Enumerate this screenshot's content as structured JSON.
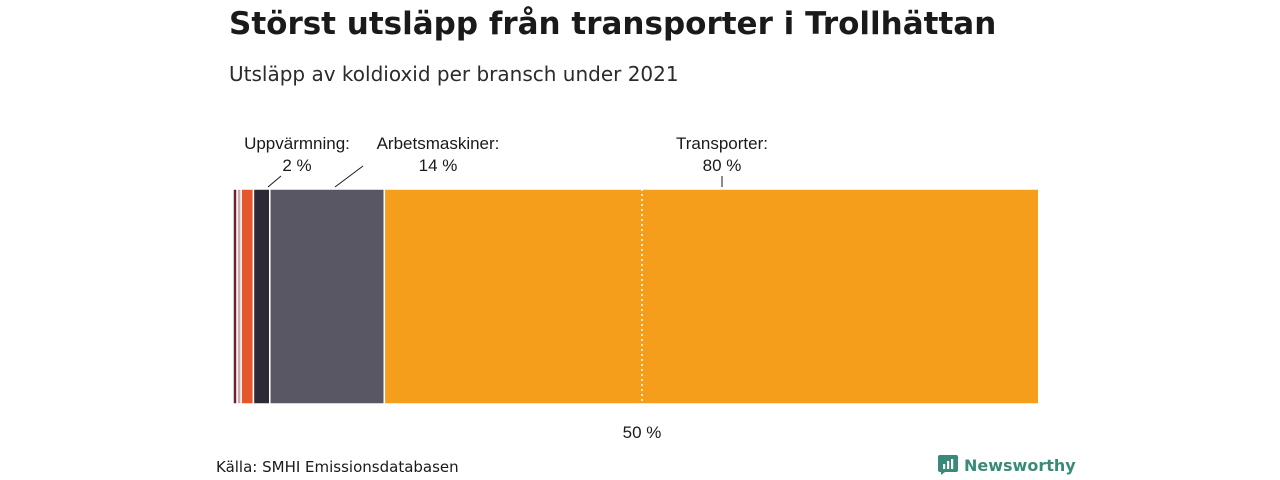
{
  "header": {
    "title": "Störst utsläpp från transporter i Trollhättan",
    "subtitle": "Utsläpp av koldioxid per bransch under 2021"
  },
  "footer": {
    "source": "Källa: SMHI Emissionsdatabasen",
    "brand": "Newsworthy",
    "brand_icon": "newsworthy-logo-icon"
  },
  "colors": {
    "accent_transport": "#F59E1B",
    "work_machines": "#5A5764",
    "heating": "#2D2A35",
    "small_1": "#6E1F2E",
    "small_2": "#C9A9AE",
    "small_3": "#E5572B",
    "brand": "#3A8A7A"
  },
  "chart_data": {
    "type": "bar",
    "orientation": "horizontal-stacked",
    "unit": "%",
    "xlim": [
      0,
      100
    ],
    "reference_line": {
      "value": 50,
      "label": "50 %",
      "style": "dotted"
    },
    "segments": [
      {
        "label": "",
        "value_text": "",
        "value": 0.5,
        "color": "#6E1F2E"
      },
      {
        "label": "",
        "value_text": "",
        "value": 0.5,
        "color": "#C9A9AE"
      },
      {
        "label": "",
        "value_text": "",
        "value": 1.5,
        "color": "#E5572B"
      },
      {
        "label": "Uppvärmning:",
        "value_text": "2 %",
        "value": 2,
        "color": "#2D2A35"
      },
      {
        "label": "Arbetsmaskiner:",
        "value_text": "14 %",
        "value": 14,
        "color": "#5A5764"
      },
      {
        "label": "Transporter:",
        "value_text": "80 %",
        "value": 80,
        "color": "#F59E1B"
      }
    ]
  }
}
